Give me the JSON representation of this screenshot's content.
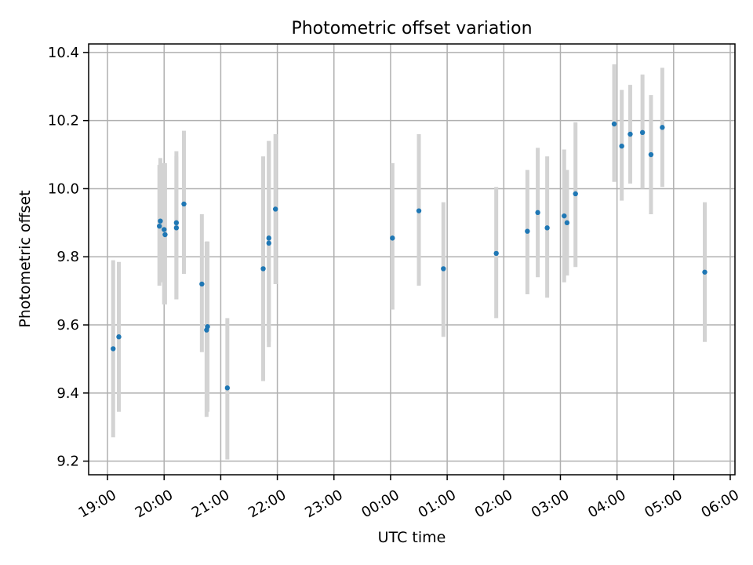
{
  "chart_data": {
    "type": "scatter",
    "title": "Photometric offset variation",
    "xlabel": "UTC time",
    "ylabel": "Photometric offset",
    "grid": true,
    "xlim": [
      "18:40",
      "30:05"
    ],
    "ylim": [
      9.16,
      10.425
    ],
    "x_ticks": [
      "19:00",
      "20:00",
      "21:00",
      "22:00",
      "23:00",
      "00:00",
      "01:00",
      "02:00",
      "03:00",
      "04:00",
      "05:00",
      "06:00"
    ],
    "y_ticks": [
      9.2,
      9.4,
      9.6,
      9.8,
      10.0,
      10.2,
      10.4
    ],
    "point_color": "#1f77b4",
    "errorbar_color": "#d3d3d3",
    "series": [
      {
        "points": [
          {
            "x": "19:06",
            "y": 9.53,
            "ylo": 9.27,
            "yhi": 9.79
          },
          {
            "x": "19:12",
            "y": 9.565,
            "ylo": 9.345,
            "yhi": 9.785
          },
          {
            "x": "19:55",
            "y": 9.89,
            "ylo": 9.715,
            "yhi": 10.07
          },
          {
            "x": "19:56",
            "y": 9.905,
            "ylo": 9.725,
            "yhi": 10.09
          },
          {
            "x": "20:00",
            "y": 9.88,
            "ylo": 9.66,
            "yhi": 10.075
          },
          {
            "x": "20:01",
            "y": 9.865,
            "ylo": 9.66,
            "yhi": 10.075
          },
          {
            "x": "20:13",
            "y": 9.885,
            "ylo": 9.675,
            "yhi": 10.11
          },
          {
            "x": "20:13",
            "y": 9.9,
            "ylo": 9.675,
            "yhi": 10.095
          },
          {
            "x": "20:21",
            "y": 9.955,
            "ylo": 9.75,
            "yhi": 10.17
          },
          {
            "x": "20:40",
            "y": 9.72,
            "ylo": 9.52,
            "yhi": 9.925
          },
          {
            "x": "20:45",
            "y": 9.585,
            "ylo": 9.33,
            "yhi": 9.845
          },
          {
            "x": "20:46",
            "y": 9.595,
            "ylo": 9.345,
            "yhi": 9.845
          },
          {
            "x": "21:07",
            "y": 9.415,
            "ylo": 9.205,
            "yhi": 9.62
          },
          {
            "x": "21:45",
            "y": 9.765,
            "ylo": 9.435,
            "yhi": 10.095
          },
          {
            "x": "21:51",
            "y": 9.84,
            "ylo": 9.535,
            "yhi": 10.14
          },
          {
            "x": "21:51",
            "y": 9.855,
            "ylo": 9.55,
            "yhi": 10.14
          },
          {
            "x": "21:58",
            "y": 9.94,
            "ylo": 9.72,
            "yhi": 10.16
          },
          {
            "x": "24:02",
            "y": 9.855,
            "ylo": 9.645,
            "yhi": 10.075
          },
          {
            "x": "24:30",
            "y": 9.935,
            "ylo": 9.715,
            "yhi": 10.16
          },
          {
            "x": "24:56",
            "y": 9.765,
            "ylo": 9.565,
            "yhi": 9.96
          },
          {
            "x": "25:52",
            "y": 9.81,
            "ylo": 9.62,
            "yhi": 10.005
          },
          {
            "x": "26:25",
            "y": 9.875,
            "ylo": 9.69,
            "yhi": 10.055
          },
          {
            "x": "26:36",
            "y": 9.93,
            "ylo": 9.74,
            "yhi": 10.12
          },
          {
            "x": "26:46",
            "y": 9.885,
            "ylo": 9.68,
            "yhi": 10.095
          },
          {
            "x": "27:04",
            "y": 9.92,
            "ylo": 9.725,
            "yhi": 10.115
          },
          {
            "x": "27:07",
            "y": 9.9,
            "ylo": 9.745,
            "yhi": 10.055
          },
          {
            "x": "27:16",
            "y": 9.985,
            "ylo": 9.77,
            "yhi": 10.195
          },
          {
            "x": "27:57",
            "y": 10.19,
            "ylo": 10.02,
            "yhi": 10.365
          },
          {
            "x": "28:05",
            "y": 10.125,
            "ylo": 9.965,
            "yhi": 10.29
          },
          {
            "x": "28:14",
            "y": 10.16,
            "ylo": 10.015,
            "yhi": 10.305
          },
          {
            "x": "28:27",
            "y": 10.165,
            "ylo": 10.0,
            "yhi": 10.335
          },
          {
            "x": "28:36",
            "y": 10.1,
            "ylo": 9.925,
            "yhi": 10.275
          },
          {
            "x": "28:48",
            "y": 10.18,
            "ylo": 10.005,
            "yhi": 10.355
          },
          {
            "x": "29:33",
            "y": 9.755,
            "ylo": 9.55,
            "yhi": 9.96
          }
        ]
      }
    ]
  }
}
